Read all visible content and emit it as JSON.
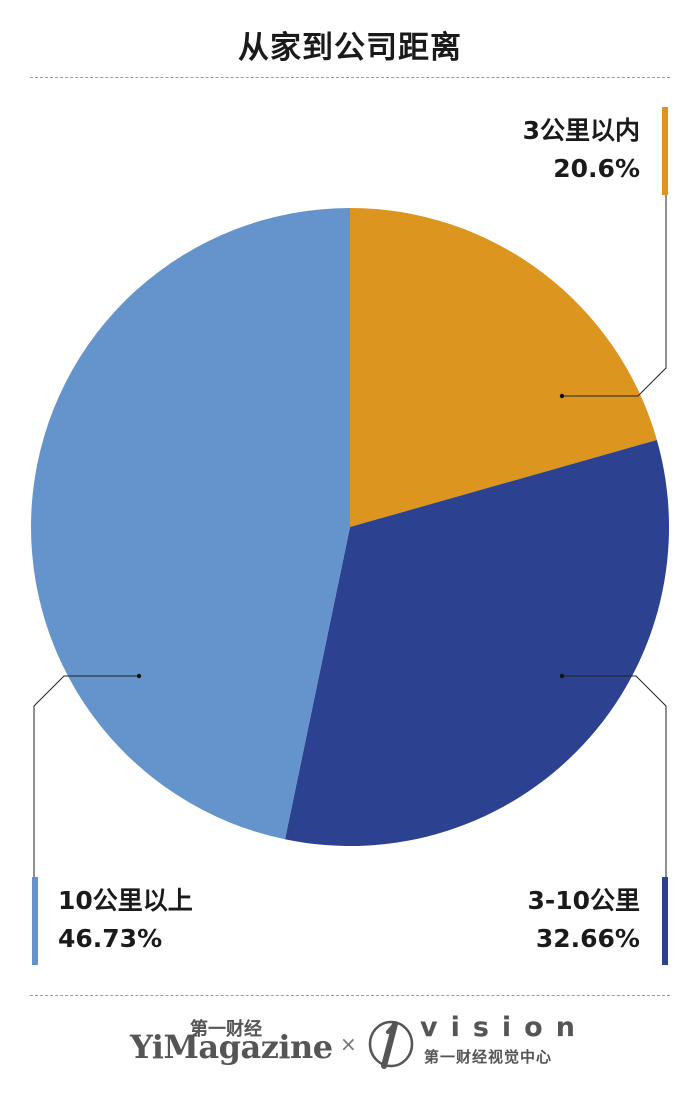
{
  "chart_data": {
    "type": "pie",
    "title": "从家到公司距离",
    "slices": [
      {
        "label": "3公里以内",
        "value": 20.6,
        "value_label": "20.6%",
        "color": "#dc951e"
      },
      {
        "label": "3-10公里",
        "value": 32.66,
        "value_label": "32.66%",
        "color": "#2c418f"
      },
      {
        "label": "10公里以上",
        "value": 46.73,
        "value_label": "46.73%",
        "color": "#6594cd"
      }
    ]
  },
  "footer": {
    "brand_top": "第一财经",
    "brand_main": "YiMagazine",
    "separator": "×",
    "vision_word": "vision",
    "vision_sub": "第一财经视觉中心"
  }
}
